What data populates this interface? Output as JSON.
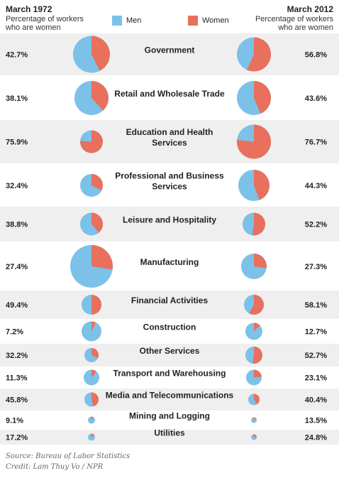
{
  "header": {
    "left_date": "March 1972",
    "left_subtitle_line1": "Percentage of workers",
    "left_subtitle_line2": "who are women",
    "right_date": "March  2012",
    "right_subtitle_line1": "Percentage of workers",
    "right_subtitle_line2": "who are women"
  },
  "legend": {
    "men_label": "Men",
    "women_label": "Women"
  },
  "colors": {
    "men": "#7cc1e8",
    "women": "#e8705d",
    "band": "#efefef"
  },
  "chart_data": {
    "type": "pie",
    "series": [
      {
        "name": "Women"
      },
      {
        "name": "Men"
      }
    ],
    "columns": [
      "March 1972",
      "March  2012"
    ],
    "rows": [
      {
        "label": "Government",
        "lines": [
          "Government"
        ],
        "pct_1972": 42.7,
        "pct_2012": 56.8,
        "label_1972": "42.7%",
        "label_2012": "56.8%"
      },
      {
        "label": "Retail and Wholesale Trade",
        "lines": [
          "Retail and Wholesale Trade"
        ],
        "pct_1972": 38.1,
        "pct_2012": 43.6,
        "label_1972": "38.1%",
        "label_2012": "43.6%"
      },
      {
        "label": "Education and Health Services",
        "lines": [
          "Education and Health",
          "Services"
        ],
        "pct_1972": 75.9,
        "pct_2012": 76.7,
        "label_1972": "75.9%",
        "label_2012": "76.7%"
      },
      {
        "label": "Professional and Business Services",
        "lines": [
          "Professional and Business",
          "Services"
        ],
        "pct_1972": 32.4,
        "pct_2012": 44.3,
        "label_1972": "32.4%",
        "label_2012": "44.3%"
      },
      {
        "label": "Leisure and Hospitality",
        "lines": [
          "Leisure and Hospitality"
        ],
        "pct_1972": 38.8,
        "pct_2012": 52.2,
        "label_1972": "38.8%",
        "label_2012": "52.2%"
      },
      {
        "label": "Manufacturing",
        "lines": [
          "Manufacturing"
        ],
        "pct_1972": 27.4,
        "pct_2012": 27.3,
        "label_1972": "27.4%",
        "label_2012": "27.3%"
      },
      {
        "label": "Financial Activities",
        "lines": [
          "Financial Activities"
        ],
        "pct_1972": 49.4,
        "pct_2012": 58.1,
        "label_1972": "49.4%",
        "label_2012": "58.1%"
      },
      {
        "label": "Construction",
        "lines": [
          "Construction"
        ],
        "pct_1972": 7.2,
        "pct_2012": 12.7,
        "label_1972": "7.2%",
        "label_2012": "12.7%"
      },
      {
        "label": "Other Services",
        "lines": [
          "Other Services"
        ],
        "pct_1972": 32.2,
        "pct_2012": 52.7,
        "label_1972": "32.2%",
        "label_2012": "52.7%"
      },
      {
        "label": "Transport and Warehousing",
        "lines": [
          "Transport and Warehousing"
        ],
        "pct_1972": 11.3,
        "pct_2012": 23.1,
        "label_1972": "11.3%",
        "label_2012": "23.1%"
      },
      {
        "label": "Media and Telecommunications",
        "lines": [
          "Media and Telecommunications"
        ],
        "pct_1972": 45.8,
        "pct_2012": 40.4,
        "label_1972": "45.8%",
        "label_2012": "40.4%"
      },
      {
        "label": "Mining and Logging",
        "lines": [
          "Mining and Logging"
        ],
        "pct_1972": 9.1,
        "pct_2012": 13.5,
        "label_1972": "9.1%",
        "label_2012": "13.5%"
      },
      {
        "label": "Utilities",
        "lines": [
          "Utilities"
        ],
        "pct_1972": 17.2,
        "pct_2012": 24.8,
        "label_1972": "17.2%",
        "label_2012": "24.8%"
      }
    ]
  },
  "footer": {
    "source": "Source: Bureau of Labor Statistics",
    "credit": "Credit: Lam Thuy Vo / NPR"
  }
}
